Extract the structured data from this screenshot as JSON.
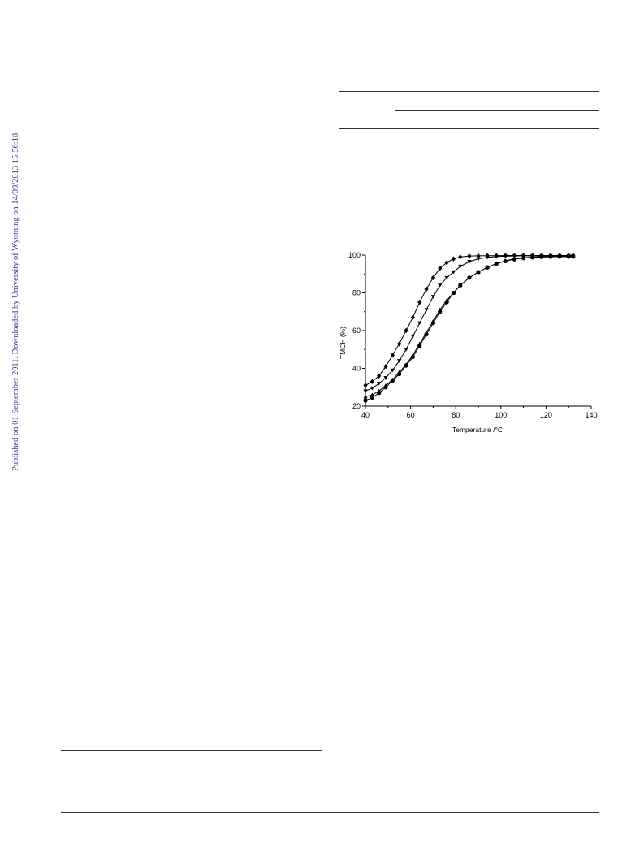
{
  "sidebar": {
    "text": "Published on 01 September 2011. Downloaded by University of Wyoming on 14/09/2013 15:56:18."
  },
  "chart_data": {
    "type": "line",
    "xlabel": "Temperature /°C",
    "ylabel": "TMCH (%)",
    "xlim": [
      40,
      140
    ],
    "ylim": [
      20,
      100
    ],
    "xticks": [
      40,
      60,
      80,
      100,
      120,
      140
    ],
    "yticks": [
      20,
      40,
      60,
      80,
      100
    ],
    "grid": false,
    "series": [
      {
        "marker": "diamond",
        "x": [
          40,
          43,
          46,
          49,
          52,
          55,
          58,
          61,
          64,
          67,
          70,
          73,
          76,
          79,
          82,
          86,
          90,
          94,
          98,
          102,
          106,
          110,
          114,
          118,
          122,
          126,
          130,
          132
        ],
        "y": [
          31,
          33,
          36,
          41,
          47,
          53,
          60,
          67,
          75,
          82,
          88,
          93,
          96,
          98,
          99,
          99.5,
          99.6,
          99.7,
          99.7,
          99.8,
          99.8,
          99.8,
          99.8,
          99.8,
          99.8,
          99.8,
          99.8,
          99.8
        ]
      },
      {
        "marker": "triangle-down",
        "x": [
          40,
          43,
          46,
          49,
          52,
          55,
          58,
          61,
          64,
          67,
          70,
          73,
          76,
          79,
          82,
          86,
          90,
          94,
          98,
          102,
          106,
          110,
          114,
          118,
          122,
          126,
          130,
          132
        ],
        "y": [
          28,
          29.5,
          32,
          35,
          39,
          44,
          50,
          57,
          64,
          71,
          78,
          84,
          88,
          91,
          94,
          96.5,
          98,
          98.8,
          99.2,
          99.4,
          99.5,
          99.6,
          99.6,
          99.6,
          99.6,
          99.6,
          99.6,
          99.6
        ]
      },
      {
        "marker": "triangle-up",
        "x": [
          40,
          43,
          46,
          49,
          52,
          55,
          58,
          61,
          64,
          67,
          70,
          73,
          76,
          79,
          82,
          86,
          90,
          94,
          98,
          102,
          106,
          110,
          114,
          118,
          122,
          126,
          130,
          132
        ],
        "y": [
          25,
          26,
          28,
          31,
          34,
          38,
          42,
          47,
          53,
          59,
          65,
          71,
          76,
          80,
          84,
          88,
          91,
          93.5,
          95.5,
          97,
          98,
          98.6,
          99,
          99.2,
          99.3,
          99.3,
          99.3,
          99.3
        ]
      },
      {
        "marker": "circle",
        "x": [
          40,
          43,
          46,
          49,
          52,
          55,
          58,
          61,
          64,
          67,
          70,
          73,
          76,
          79,
          82,
          86,
          90,
          94,
          98,
          102,
          106,
          110,
          114,
          118,
          122,
          126,
          130,
          132
        ],
        "y": [
          23,
          24.5,
          27,
          30,
          33.5,
          37,
          41.5,
          46,
          52,
          58,
          64,
          70,
          75,
          80,
          84,
          88,
          91,
          93.5,
          95.5,
          96.8,
          97.8,
          98.4,
          98.8,
          99,
          99.1,
          99.2,
          99.2,
          99.2
        ]
      }
    ]
  }
}
